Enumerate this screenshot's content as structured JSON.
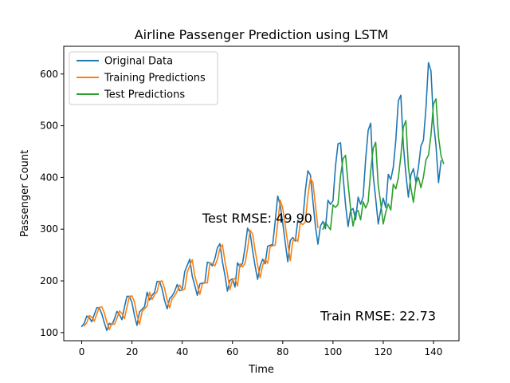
{
  "chart_data": {
    "type": "line",
    "title": "Airline Passenger Prediction using LSTM",
    "xlabel": "Time",
    "ylabel": "Passenger Count",
    "xlim": [
      -7.15,
      150.15
    ],
    "ylim": [
      84.35,
      653.65
    ],
    "xticks": [
      0,
      20,
      40,
      60,
      80,
      100,
      120,
      140
    ],
    "yticks": [
      100,
      200,
      300,
      400,
      500,
      600
    ],
    "xtick_labels": [
      "0",
      "20",
      "40",
      "60",
      "80",
      "100",
      "120",
      "140"
    ],
    "ytick_labels": [
      "100",
      "200",
      "300",
      "400",
      "500",
      "600"
    ],
    "grid": false,
    "legend_position": "upper-left",
    "series": [
      {
        "name": "Original Data",
        "color": "#1f77b4",
        "x_start": 0,
        "values": [
          112,
          118,
          132,
          129,
          121,
          135,
          148,
          148,
          136,
          119,
          104,
          118,
          115,
          126,
          141,
          135,
          125,
          149,
          170,
          170,
          158,
          133,
          114,
          140,
          145,
          150,
          178,
          163,
          172,
          178,
          199,
          199,
          184,
          162,
          146,
          166,
          171,
          180,
          193,
          181,
          183,
          218,
          230,
          242,
          209,
          191,
          172,
          194,
          196,
          196,
          236,
          235,
          229,
          243,
          264,
          272,
          237,
          211,
          180,
          201,
          204,
          188,
          235,
          227,
          234,
          264,
          302,
          293,
          259,
          229,
          203,
          229,
          242,
          233,
          267,
          269,
          270,
          315,
          364,
          347,
          312,
          274,
          237,
          278,
          284,
          277,
          317,
          313,
          318,
          374,
          413,
          405,
          355,
          306,
          271,
          306,
          315,
          301,
          356,
          348,
          355,
          422,
          465,
          467,
          404,
          347,
          305,
          336,
          340,
          318,
          362,
          348,
          363,
          435,
          491,
          505,
          404,
          359,
          310,
          337,
          360,
          342,
          406,
          396,
          420,
          472,
          548,
          559,
          463,
          407,
          362,
          405,
          417,
          391,
          419,
          461,
          472,
          535,
          622,
          606,
          508,
          461,
          390,
          432
        ]
      },
      {
        "name": "Training Predictions",
        "color": "#ff7f0e",
        "x_start": 1,
        "values": [
          113,
          119,
          133,
          130,
          122,
          136,
          149,
          150,
          138,
          120,
          106,
          118,
          116,
          127,
          142,
          137,
          127,
          149,
          170,
          171,
          159,
          134,
          116,
          140,
          146,
          151,
          178,
          164,
          173,
          179,
          199,
          200,
          185,
          163,
          148,
          166,
          171,
          180,
          192,
          182,
          184,
          217,
          229,
          241,
          210,
          192,
          174,
          194,
          196,
          196,
          234,
          234,
          229,
          242,
          262,
          270,
          238,
          213,
          183,
          202,
          205,
          190,
          233,
          227,
          234,
          262,
          298,
          291,
          259,
          231,
          206,
          230,
          242,
          234,
          266,
          268,
          269,
          311,
          356,
          341,
          308,
          273,
          239,
          277,
          282,
          276,
          312,
          309,
          314,
          364,
          398,
          391,
          347,
          303
        ]
      },
      {
        "name": "Test Predictions",
        "color": "#2ca02c",
        "x_start": 96,
        "values": [
          300,
          313,
          306,
          299,
          347,
          342,
          348,
          403,
          436,
          443,
          388,
          340,
          306,
          333,
          336,
          318,
          353,
          341,
          353,
          412,
          456,
          468,
          385,
          350,
          310,
          333,
          349,
          337,
          387,
          378,
          399,
          441,
          497,
          510,
          421,
          380,
          352,
          389,
          400,
          380,
          401,
          434,
          443,
          482,
          542,
          552,
          478,
          442,
          427
        ]
      }
    ],
    "annotations": [
      {
        "text": "Test RMSE: 49.90",
        "color": "#ff0000",
        "x": 48,
        "y": 313
      },
      {
        "text": "Train RMSE: 22.73",
        "color": "#0000ff",
        "x": 95,
        "y": 124
      }
    ]
  }
}
